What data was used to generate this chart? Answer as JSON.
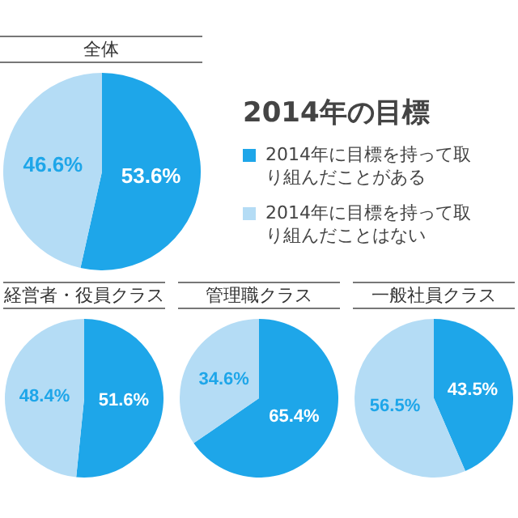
{
  "chart_data": [
    {
      "type": "pie",
      "title": "全体",
      "legend_title": "2014年の目標",
      "legend": "right",
      "categories": [
        "2014年に目標を持って取り組んだことがある",
        "2014年に目標を持って取り組んだことはない"
      ],
      "values": [
        53.6,
        46.6
      ],
      "value_labels": [
        "53.6%",
        "46.6%"
      ],
      "colors": [
        "#1ea6e9",
        "#b4dcf5"
      ]
    },
    {
      "type": "pie",
      "title": "経営者・役員クラス",
      "categories": [
        null,
        null
      ],
      "values": [
        51.6,
        48.4
      ],
      "value_labels": [
        "51.6%",
        "48.4%"
      ],
      "colors": [
        "#1ea6e9",
        "#b4dcf5"
      ]
    },
    {
      "type": "pie",
      "title": "管理職クラス",
      "categories": [
        null,
        null
      ],
      "values": [
        65.4,
        34.6
      ],
      "value_labels": [
        "65.4%",
        "34.6%"
      ],
      "colors": [
        "#1ea6e9",
        "#b4dcf5"
      ]
    },
    {
      "type": "pie",
      "title": "一般社員クラス",
      "categories": [
        null,
        null
      ],
      "values": [
        43.5,
        56.5
      ],
      "value_labels": [
        "43.5%",
        "56.5%"
      ],
      "colors": [
        "#1ea6e9",
        "#b4dcf5"
      ]
    }
  ]
}
